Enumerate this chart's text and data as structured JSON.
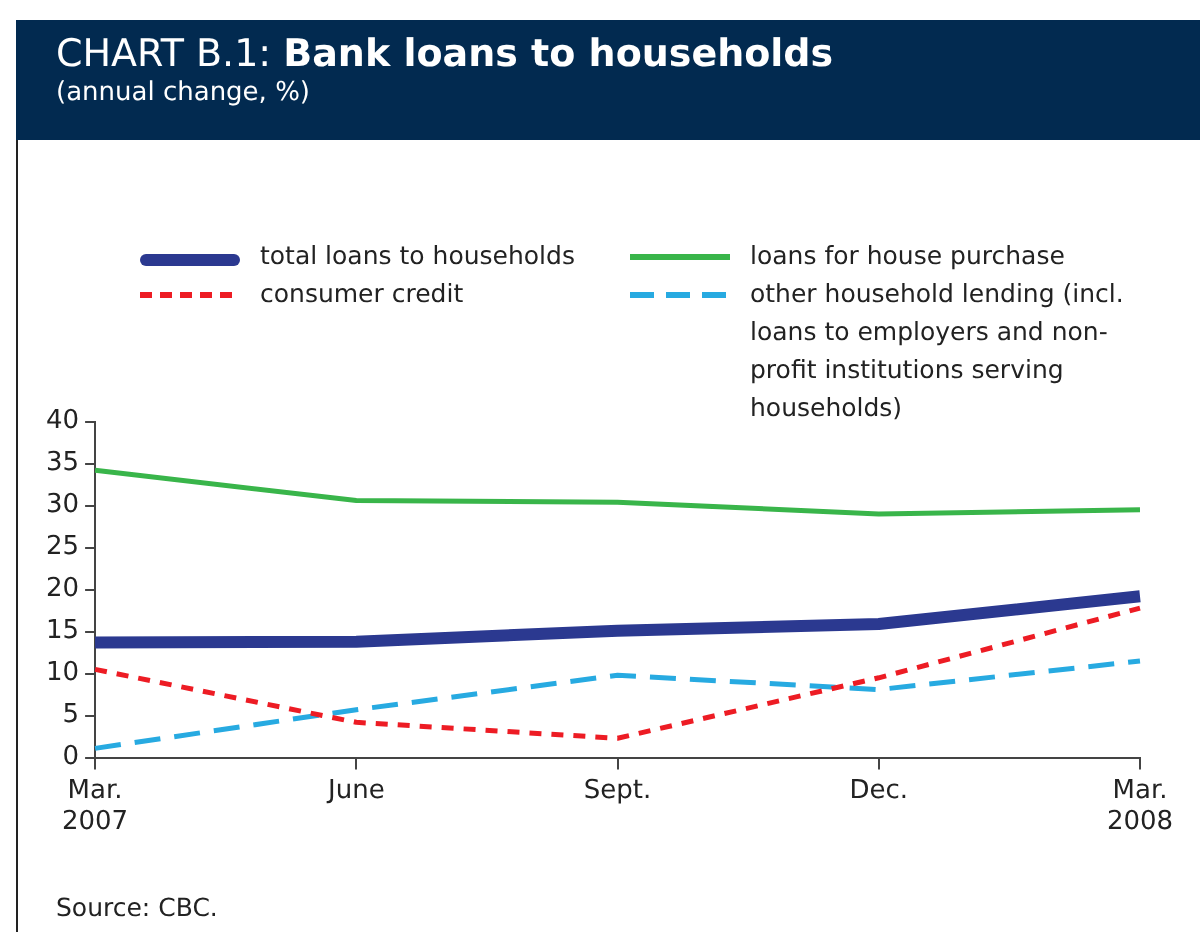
{
  "chart_data": {
    "type": "line",
    "title": "CHART B.1: Bank loans to households",
    "subtitle": "(annual change, %)",
    "categories": [
      "Mar.\n2007",
      "June",
      "Sept.",
      "Dec.",
      "Mar.\n2008"
    ],
    "series": [
      {
        "name": "total loans to households",
        "color": "#2b3990",
        "values": [
          13.7,
          13.8,
          15.1,
          15.9,
          19.2
        ]
      },
      {
        "name": "consumer credit",
        "color": "#ed1c24",
        "line_style": "dashed",
        "values": [
          10.5,
          4.2,
          2.3,
          9.5,
          17.8
        ]
      },
      {
        "name": "loans for house purchase",
        "color": "#39b54a",
        "values": [
          34.2,
          30.6,
          30.4,
          29.0,
          29.5
        ]
      },
      {
        "name": "other household lending (incl. loans to employers and non-profit institutions serving households)",
        "color": "#27aae1",
        "line_style": "dashed",
        "values": [
          1.1,
          5.7,
          9.8,
          8.1,
          11.5
        ]
      }
    ],
    "ylim": [
      0,
      40
    ],
    "yticks": [
      0,
      5,
      10,
      15,
      20,
      25,
      30,
      35,
      40
    ],
    "grid": false,
    "legend": "top",
    "marker": "none",
    "line_style": "solid",
    "annotations": [
      "Source: CBC."
    ]
  }
}
